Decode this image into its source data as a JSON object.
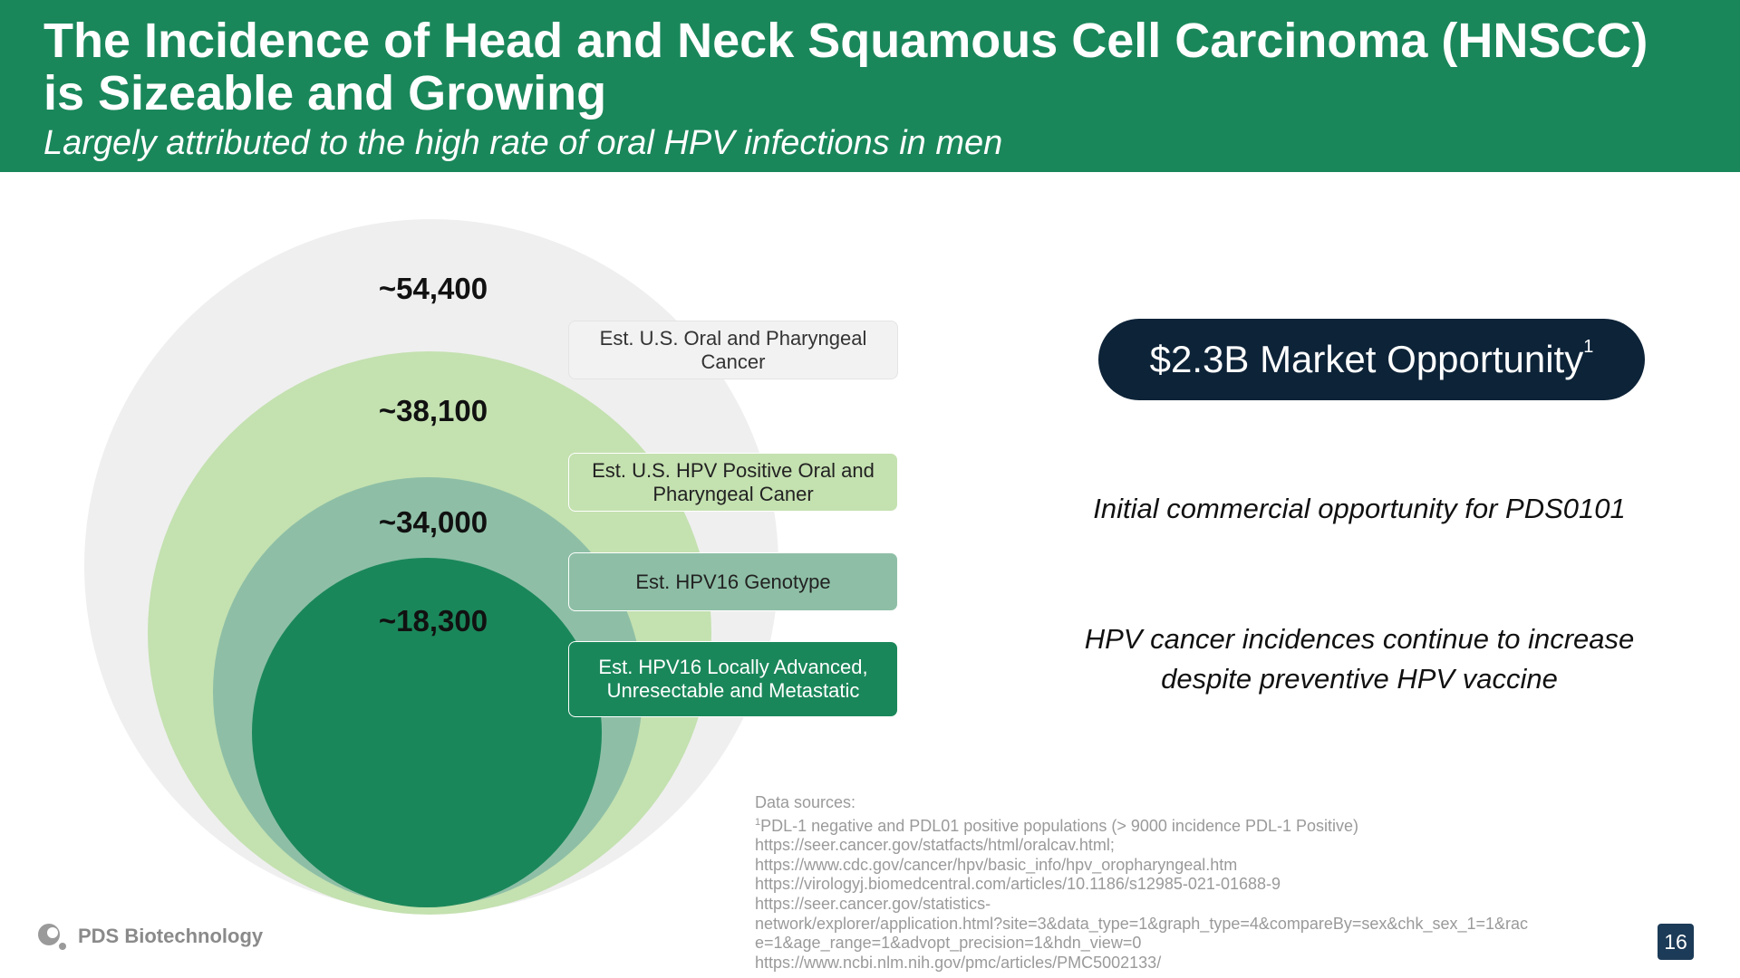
{
  "header": {
    "title": "The Incidence of Head and Neck Squamous Cell Carcinoma (HNSCC) is Sizeable and Growing",
    "subtitle": "Largely attributed to the high rate of oral HPV infections in men"
  },
  "diagram": {
    "levels": [
      {
        "value": "~54,400",
        "label": "Est. U.S. Oral and Pharyngeal Cancer",
        "color": "#efefef"
      },
      {
        "value": "~38,100",
        "label": "Est. U.S. HPV Positive Oral and Pharyngeal Caner",
        "color": "#c4e1b0"
      },
      {
        "value": "~34,000",
        "label": "Est. HPV16 Genotype",
        "color": "#8ebfa6"
      },
      {
        "value": "~18,300",
        "label": "Est. HPV16 Locally Advanced, Unresectable and Metastatic",
        "color": "#1a875a"
      }
    ]
  },
  "market": {
    "text": "$2.3B Market Opportunity",
    "footnote": "1"
  },
  "notes": {
    "initial": "Initial commercial opportunity for PDS0101",
    "increase_line1": "HPV cancer incidences continue to increase",
    "increase_line2": "despite preventive HPV vaccine"
  },
  "sources": {
    "heading": "Data sources:",
    "footnote_mark": "1",
    "line1": "PDL-1 negative and PDL01 positive populations (> 9000 incidence  PDL-1 Positive)",
    "line2": "https://seer.cancer.gov/statfacts/html/oralcav.html;",
    "line3": "https://www.cdc.gov/cancer/hpv/basic_info/hpv_oropharyngeal.htm",
    "line4": "https://virologyj.biomedcentral.com/articles/10.1186/s12985-021-01688-9",
    "line5": "https://seer.cancer.gov/statistics-",
    "line6": "network/explorer/application.html?site=3&data_type=1&graph_type=4&compareBy=sex&chk_sex_1=1&rac",
    "line7": "e=1&age_range=1&advopt_precision=1&hdn_view=0",
    "line8": "https://www.ncbi.nlm.nih.gov/pmc/articles/PMC5002133/"
  },
  "footer": {
    "company": "PDS Biotechnology",
    "page_number": "16"
  },
  "colors": {
    "header_bg": "#1a875a",
    "pill_bg": "#0d2338",
    "page_badge_bg": "#1c3b58"
  }
}
